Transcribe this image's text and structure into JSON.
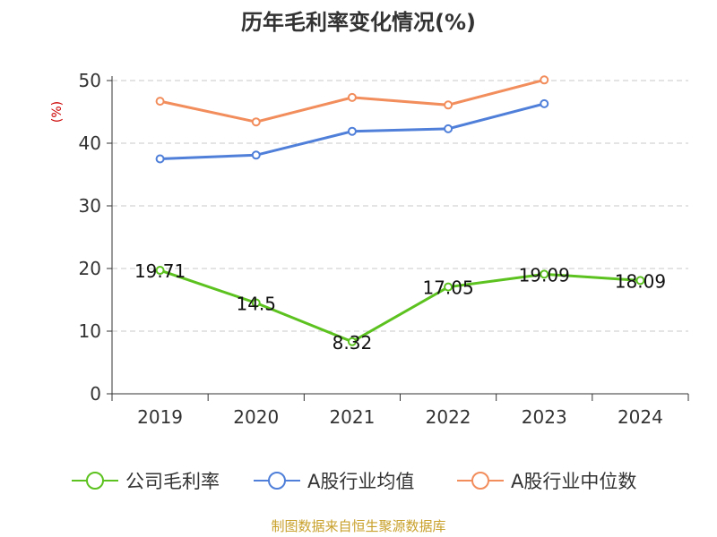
{
  "chart_data": {
    "type": "line",
    "title": "历年毛利率变化情况(%)",
    "ylabel": "(%)",
    "xlabel": "",
    "categories": [
      "2019",
      "2020",
      "2021",
      "2022",
      "2023",
      "2024"
    ],
    "ylim": [
      0,
      50
    ],
    "yticks": [
      0,
      10,
      20,
      30,
      40,
      50
    ],
    "grid": true,
    "legend_position": "bottom",
    "series": [
      {
        "name": "公司毛利率",
        "color": "#5cc21f",
        "values": [
          19.71,
          14.5,
          8.32,
          17.05,
          19.09,
          18.09
        ],
        "labels": [
          "19.71",
          "14.5",
          "8.32",
          "17.05",
          "19.09",
          "18.09"
        ]
      },
      {
        "name": "A股行业均值",
        "color": "#4f7fd9",
        "values": [
          37.5,
          38.1,
          41.9,
          42.3,
          46.3,
          null
        ],
        "labels": []
      },
      {
        "name": "A股行业中位数",
        "color": "#f28d5c",
        "values": [
          46.7,
          43.4,
          47.3,
          46.1,
          50.1,
          null
        ],
        "labels": []
      }
    ],
    "source_note": "制图数据来自恒生聚源数据库"
  }
}
